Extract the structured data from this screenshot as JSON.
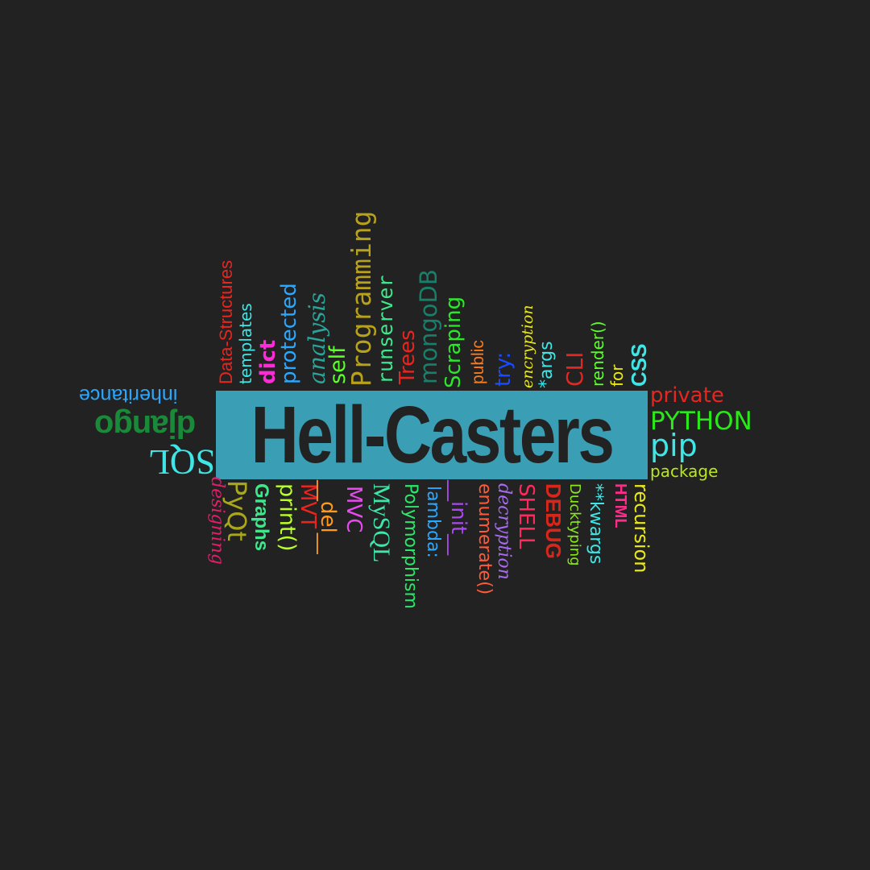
{
  "title": "Hell-Casters",
  "colors": {
    "background": "#222222",
    "banner": "#3a9fb5",
    "title": "#222222"
  },
  "top_words": [
    {
      "text": "Data-Structures",
      "color": "#e8251f"
    },
    {
      "text": "templates",
      "color": "#3ee6e6"
    },
    {
      "text": "dict",
      "color": "#ff2ad8"
    },
    {
      "text": "protected",
      "color": "#2aa8ff"
    },
    {
      "text": "analysis",
      "color": "#2aa59a"
    },
    {
      "text": "self",
      "color": "#5cff2a"
    },
    {
      "text": "Programming",
      "color": "#b8a21c"
    },
    {
      "text": "runserver",
      "color": "#3ee68c"
    },
    {
      "text": "Trees",
      "color": "#e8251f"
    },
    {
      "text": "mongoDB",
      "color": "#1a7f6a"
    },
    {
      "text": "Scraping",
      "color": "#2ae82a"
    },
    {
      "text": "public",
      "color": "#ff7a1a"
    },
    {
      "text": "try:",
      "color": "#1a4cff"
    },
    {
      "text": "encryption",
      "color": "#e8e81a"
    },
    {
      "text": "*args",
      "color": "#3ee6e6"
    },
    {
      "text": "CLI",
      "color": "#e8251f"
    },
    {
      "text": "render()",
      "color": "#5cff2a"
    },
    {
      "text": "for",
      "color": "#e8e81a"
    },
    {
      "text": "CSS",
      "color": "#3ee6e6"
    }
  ],
  "left_words": [
    {
      "text": "inheritance",
      "color": "#2aa8ff"
    },
    {
      "text": "django",
      "color": "#1a8a3a"
    },
    {
      "text": "SQL",
      "color": "#3ee6e6"
    }
  ],
  "right_words": [
    {
      "text": "private",
      "color": "#e8251f"
    },
    {
      "text": "PYTHON",
      "color": "#2ae81a"
    },
    {
      "text": "pip",
      "color": "#3ee6e6"
    },
    {
      "text": "package",
      "color": "#b8e81a"
    }
  ],
  "bottom_words": [
    {
      "text": "designing",
      "color": "#e81a6a"
    },
    {
      "text": "PyQt",
      "color": "#a8a81a"
    },
    {
      "text": "Graphs",
      "color": "#3ee68c"
    },
    {
      "text": "print()",
      "color": "#b8ff2a"
    },
    {
      "text": "MVT",
      "color": "#e8251f"
    },
    {
      "text": "__del__",
      "color": "#ff9a1a"
    },
    {
      "text": "MVC",
      "color": "#e84af0"
    },
    {
      "text": "MySQL",
      "color": "#3ee6a8"
    },
    {
      "text": "Polymorphism",
      "color": "#2ae86a"
    },
    {
      "text": "lambda:",
      "color": "#2aa8ff"
    },
    {
      "text": "__init__",
      "color": "#a84af0"
    },
    {
      "text": "enumerate()",
      "color": "#ff5a3a"
    },
    {
      "text": "decryption",
      "color": "#a86af0"
    },
    {
      "text": "SHELL",
      "color": "#ff2a5a"
    },
    {
      "text": "DEBUG",
      "color": "#d8261a"
    },
    {
      "text": "Ducktyping",
      "color": "#8ae81a"
    },
    {
      "text": "**kwargs",
      "color": "#3ee6e6"
    },
    {
      "text": "HTML",
      "color": "#ff2a8a"
    },
    {
      "text": "recursion",
      "color": "#e8e81a"
    }
  ]
}
